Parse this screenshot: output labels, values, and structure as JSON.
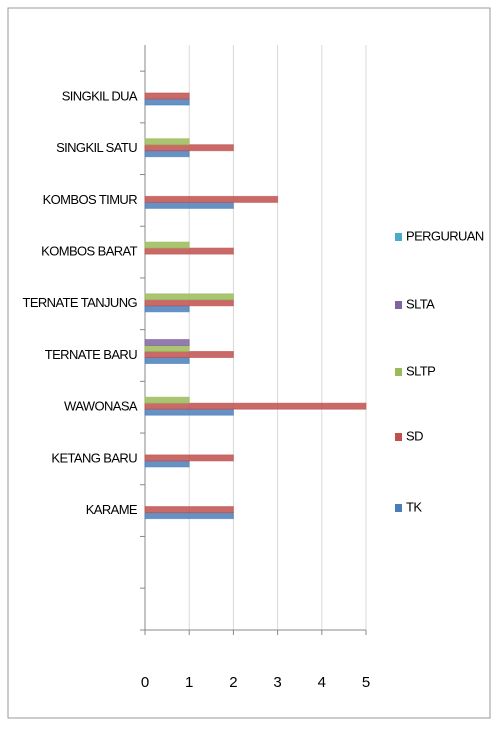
{
  "chart_data": {
    "type": "bar",
    "orientation": "horizontal",
    "categories": [
      "SINGKIL DUA",
      "SINGKIL SATU",
      "KOMBOS TIMUR",
      "KOMBOS BARAT",
      "TERNATE TANJUNG",
      "TERNATE BARU",
      "WAWONASA",
      "KETANG BARU",
      "KARAME",
      null,
      null
    ],
    "series": [
      {
        "name": "TK",
        "color": "#4a7ebb",
        "values": [
          1,
          1,
          2,
          0,
          1,
          1,
          2,
          1,
          2,
          null,
          null
        ]
      },
      {
        "name": "SD",
        "color": "#c0504d",
        "values": [
          1,
          2,
          3,
          2,
          2,
          2,
          5,
          2,
          2,
          null,
          null
        ]
      },
      {
        "name": "SLTP",
        "color": "#9bbb59",
        "values": [
          0,
          1,
          0,
          1,
          2,
          1,
          1,
          0,
          0,
          null,
          null
        ]
      },
      {
        "name": "SLTA",
        "color": "#8064a2",
        "values": [
          0,
          0,
          0,
          0,
          0,
          1,
          0,
          0,
          0,
          null,
          null
        ]
      },
      {
        "name": "PERGURUAN",
        "color": "#4bacc6",
        "values": [
          0,
          0,
          0,
          0,
          0,
          0,
          0,
          0,
          0,
          null,
          null
        ]
      }
    ],
    "xlim": [
      0,
      5
    ],
    "xticks": [
      0,
      1,
      2,
      3,
      4,
      5
    ],
    "grid": true,
    "legend": "right"
  }
}
